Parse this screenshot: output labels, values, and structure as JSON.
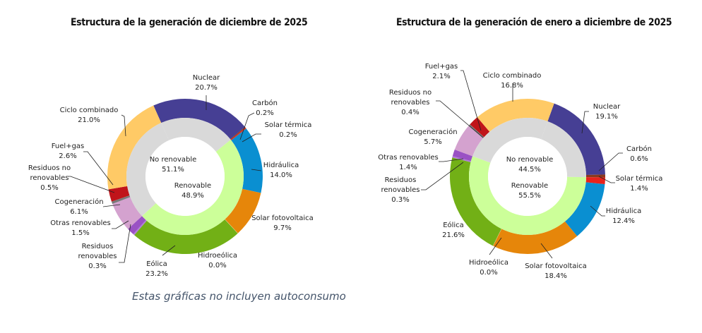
{
  "chart_data": [
    {
      "type": "pie",
      "subtype": "doughnut-nested",
      "title": "Estructura de la generación de diciembre de 2025",
      "outer": [
        {
          "name": "Nuclear",
          "value": 20.7,
          "label": "20.7%",
          "renewable": false,
          "color": "#463f94"
        },
        {
          "name": "Carbón",
          "value": 0.2,
          "label": "0.2%",
          "renewable": false,
          "color": "#8b3a1e"
        },
        {
          "name": "Solar térmica",
          "value": 0.2,
          "label": "0.2%",
          "renewable": true,
          "color": "#e8231c"
        },
        {
          "name": "Hidráulica",
          "value": 14.0,
          "label": "14.0%",
          "renewable": true,
          "color": "#0a8fd1"
        },
        {
          "name": "Solar fotovoltaica",
          "value": 9.7,
          "label": "9.7%",
          "renewable": true,
          "color": "#e6860a"
        },
        {
          "name": "Hidroeólica",
          "value": 0.0,
          "label": "0.0%",
          "renewable": true,
          "color": "#3a7a1a"
        },
        {
          "name": "Eólica",
          "value": 23.2,
          "label": "23.2%",
          "renewable": true,
          "color": "#72b016"
        },
        {
          "name": "Residuos renovables",
          "value": 0.3,
          "label": "0.3%",
          "renewable": true,
          "color": "#b07ad8"
        },
        {
          "name": "Otras renovables",
          "value": 1.5,
          "label": "1.5%",
          "renewable": true,
          "color": "#9a52c4"
        },
        {
          "name": "Cogeneración",
          "value": 6.1,
          "label": "6.1%",
          "renewable": false,
          "color": "#d4a2cf"
        },
        {
          "name": "Residuos no renovables",
          "value": 0.5,
          "label": "0.5%",
          "renewable": false,
          "color": "#7a7a7a"
        },
        {
          "name": "Fuel+gas",
          "value": 2.6,
          "label": "2.6%",
          "renewable": false,
          "color": "#c0141a"
        },
        {
          "name": "Ciclo combinado",
          "value": 21.0,
          "label": "21.0%",
          "renewable": false,
          "color": "#ffca66"
        }
      ],
      "inner": [
        {
          "name": "No renovable",
          "value": 51.1,
          "label": "51.1%",
          "color": "#d9d9d9"
        },
        {
          "name": "Renovable",
          "value": 48.9,
          "label": "48.9%",
          "color": "#ccff99"
        }
      ]
    },
    {
      "type": "pie",
      "subtype": "doughnut-nested",
      "title": "Estructura de la generación de enero a diciembre de 2025",
      "outer": [
        {
          "name": "Nuclear",
          "value": 19.1,
          "label": "19.1%",
          "renewable": false,
          "color": "#463f94"
        },
        {
          "name": "Carbón",
          "value": 0.6,
          "label": "0.6%",
          "renewable": false,
          "color": "#8b3a1e"
        },
        {
          "name": "Solar térmica",
          "value": 1.4,
          "label": "1.4%",
          "renewable": true,
          "color": "#e8231c"
        },
        {
          "name": "Hidráulica",
          "value": 12.4,
          "label": "12.4%",
          "renewable": true,
          "color": "#0a8fd1"
        },
        {
          "name": "Solar fotovoltaica",
          "value": 18.4,
          "label": "18.4%",
          "renewable": true,
          "color": "#e6860a"
        },
        {
          "name": "Hidroeólica",
          "value": 0.0,
          "label": "0.0%",
          "renewable": true,
          "color": "#3a7a1a"
        },
        {
          "name": "Eólica",
          "value": 21.6,
          "label": "21.6%",
          "renewable": true,
          "color": "#72b016"
        },
        {
          "name": "Residuos renovables",
          "value": 0.3,
          "label": "0.3%",
          "renewable": true,
          "color": "#b07ad8"
        },
        {
          "name": "Otras renovables",
          "value": 1.4,
          "label": "1.4%",
          "renewable": true,
          "color": "#9a52c4"
        },
        {
          "name": "Cogeneración",
          "value": 5.7,
          "label": "5.7%",
          "renewable": false,
          "color": "#d4a2cf"
        },
        {
          "name": "Residuos no renovables",
          "value": 0.4,
          "label": "0.4%",
          "renewable": false,
          "color": "#7a7a7a"
        },
        {
          "name": "Fuel+gas",
          "value": 2.1,
          "label": "2.1%",
          "renewable": false,
          "color": "#c0141a"
        },
        {
          "name": "Ciclo combinado",
          "value": 16.8,
          "label": "16.8%",
          "renewable": false,
          "color": "#ffca66"
        }
      ],
      "inner": [
        {
          "name": "No renovable",
          "value": 44.5,
          "label": "44.5%",
          "color": "#d9d9d9"
        },
        {
          "name": "Renovable",
          "value": 55.5,
          "label": "55.5%",
          "color": "#ccff99"
        }
      ]
    }
  ],
  "footer": {
    "note": "Estas gráficas no incluyen autoconsumo"
  }
}
